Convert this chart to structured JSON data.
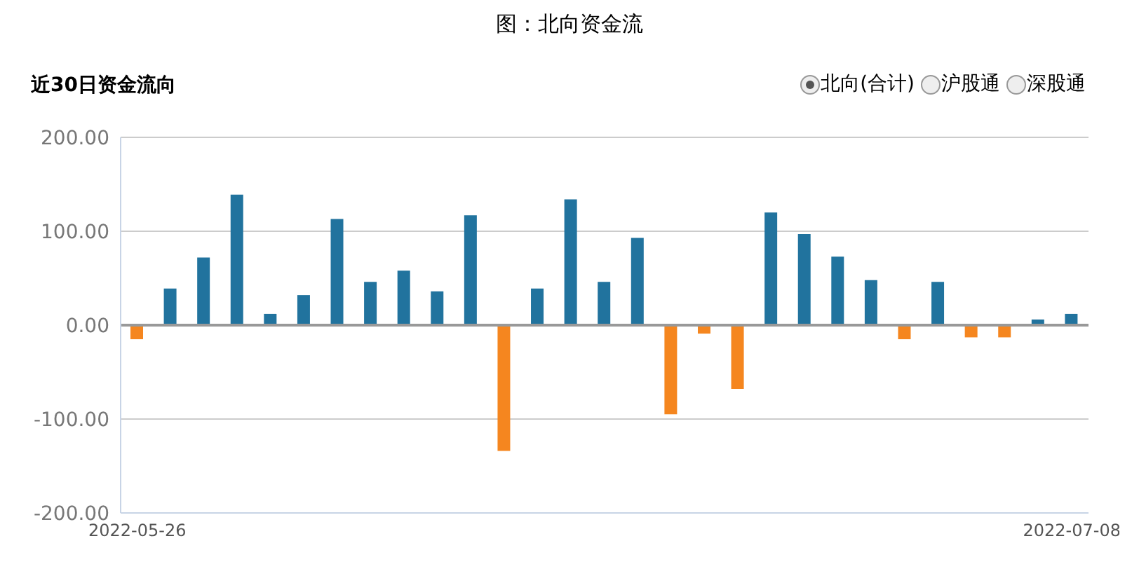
{
  "chart_data": {
    "type": "bar",
    "title": "图：北向资金流",
    "subtitle": "近30日资金流向",
    "annotations": [
      "北向(合计)",
      "沪股通",
      "深股通"
    ],
    "categories": [
      "2022-05-26",
      null,
      null,
      null,
      null,
      null,
      null,
      null,
      null,
      null,
      null,
      null,
      null,
      null,
      null,
      null,
      null,
      null,
      null,
      null,
      null,
      null,
      null,
      null,
      null,
      null,
      null,
      null,
      "2022-07-08"
    ],
    "values": [
      -15,
      39,
      72,
      139,
      12,
      32,
      113,
      46,
      58,
      36,
      117,
      -134,
      39,
      134,
      46,
      93,
      -95,
      -9,
      -68,
      120,
      97,
      73,
      48,
      -15,
      46,
      -13,
      -13,
      6,
      12
    ],
    "colors": [
      "#f5861f",
      "#21739e",
      "#21739e",
      "#21739e",
      "#21739e",
      "#21739e",
      "#21739e",
      "#21739e",
      "#21739e",
      "#21739e",
      "#21739e",
      "#f5861f",
      "#21739e",
      "#21739e",
      "#21739e",
      "#21739e",
      "#f5861f",
      "#f5861f",
      "#f5861f",
      "#21739e",
      "#21739e",
      "#21739e",
      "#21739e",
      "#f5861f",
      "#21739e",
      "#f5861f",
      "#f5861f",
      "#21739e",
      "#21739e"
    ],
    "ylim": [
      -200,
      200
    ],
    "yticks": [
      {
        "value": -200,
        "label": "-200.00"
      },
      {
        "value": -100,
        "label": "-100.00"
      },
      {
        "value": 0,
        "label": "0.00"
      },
      {
        "value": 100,
        "label": "100.00"
      },
      {
        "value": 200,
        "label": "200.00"
      }
    ],
    "grid": "y"
  }
}
